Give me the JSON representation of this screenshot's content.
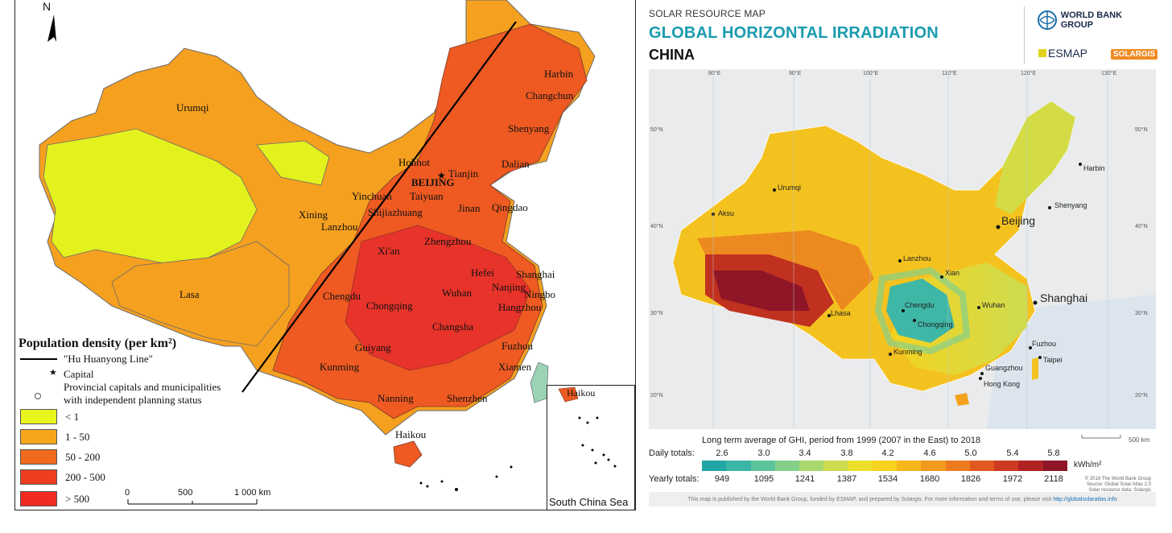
{
  "left_map": {
    "north": "N",
    "cities": {
      "harbin": "Harbin",
      "changchun": "Changchun",
      "shenyang": "Shenyang",
      "urumqi": "Urumqi",
      "hohhot": "Hohhot",
      "tianjin": "Tianjin",
      "dalian": "Dalian",
      "beijing": "BEIJING",
      "yinchuan": "Yinchuan",
      "taiyuan": "Taiyuan",
      "shijiazhuang": "Shijiazhuang",
      "jinan": "Jinan",
      "qingdao": "Qingdao",
      "xining": "Xining",
      "lanzhou": "Lanzhou",
      "zhengzhou": "Zhengzhou",
      "xian": "Xi'an",
      "hefei": "Hefei",
      "shanghai": "Shanghai",
      "nanjing": "Nanjing",
      "ningbo": "Ningbo",
      "wuhan": "Wuhan",
      "hangzhou": "Hangzhou",
      "chengdu": "Chengdu",
      "chongqing": "Chongqing",
      "lasa": "Lasa",
      "changsha": "Changsha",
      "guiyang": "Guiyang",
      "fuzhou": "Fuzhou",
      "kunming": "Kunming",
      "xiamen": "Xiamen",
      "nanning": "Nanning",
      "shenzhen": "Shenzhen",
      "haikou": "Haikou",
      "haikou_inset": "Haikou"
    },
    "legend": {
      "title": "Population density (per km²)",
      "line": "\"Hu Huanyong Line\"",
      "capital": "Capital",
      "provincial": "Provincial capitals and municipalities",
      "provincial2": "with independent planning status",
      "classes": [
        {
          "label": "< 1",
          "color": "#e8f51e"
        },
        {
          "label": "1 - 50",
          "color": "#f7a51c"
        },
        {
          "label": "50 - 200",
          "color": "#ef6a1c"
        },
        {
          "label": "200 - 500",
          "color": "#ee3e1f"
        },
        {
          "label": "> 500",
          "color": "#f12a22"
        }
      ]
    },
    "scale_bar": {
      "s0": "0",
      "s1": "500",
      "s2": "1 000 km"
    },
    "inset_label": "South China Sea"
  },
  "right_map": {
    "subtitle": "SOLAR RESOURCE MAP",
    "title": "GLOBAL HORIZONTAL IRRADIATION",
    "country": "CHINA",
    "logos": {
      "wbg": "WORLD BANK GROUP",
      "esmap": "ESMAP",
      "solargis": "SOLARGIS"
    },
    "grid_labels": {
      "lon": [
        "80°E",
        "90°E",
        "100°E",
        "110°E",
        "120°E",
        "130°E"
      ],
      "lat": [
        "50°N",
        "40°N",
        "30°N",
        "20°N"
      ]
    },
    "cities": {
      "urumqi": "Urumqi",
      "aksu": "Aksu",
      "harbin": "Harbin",
      "shenyang": "Shenyang",
      "beijing": "Beijing",
      "lanzhou": "Lanzhou",
      "xian": "Xian",
      "shanghai": "Shanghai",
      "chengdu": "Chengdu",
      "chongqing": "Chongqing",
      "wuhan": "Wuhan",
      "lhasa": "Lhasa",
      "kunming": "Kunming",
      "fuzhou": "Fuzhou",
      "taipei": "Taipei",
      "guangzhou": "Guangzhou",
      "hongkong": "Hong Kong"
    },
    "credits": [
      "© 2019 The World Bank Group",
      "Source: Global Solar Atlas 2.0",
      "Solar resource data: Solargis"
    ],
    "map_scale": "500 km",
    "period": "Long term average of GHI, period from 1999 (2007 in the East) to 2018",
    "daily_label": "Daily totals:",
    "yearly_label": "Yearly totals:",
    "daily": [
      "2.6",
      "3.0",
      "3.4",
      "3.8",
      "4.2",
      "4.6",
      "5.0",
      "5.4",
      "5.8"
    ],
    "yearly": [
      "949",
      "1095",
      "1241",
      "1387",
      "1534",
      "1680",
      "1826",
      "1972",
      "2118"
    ],
    "unit": "kWh/m²",
    "colorbar": [
      "#22a6a6",
      "#3bb6a6",
      "#5cc49b",
      "#84d08a",
      "#a9d86f",
      "#cddc4f",
      "#ecdf2b",
      "#f6d21e",
      "#f7b71c",
      "#f29a1d",
      "#ec7a1f",
      "#e05a20",
      "#cc3b22",
      "#b02223",
      "#8e1627"
    ],
    "footnote": "This map is published by the World Bank Group, funded by ESMAP, and prepared by Solargis. For more information and terms of use, please visit",
    "footnote_link": "http://globalsolaratlas.info"
  }
}
